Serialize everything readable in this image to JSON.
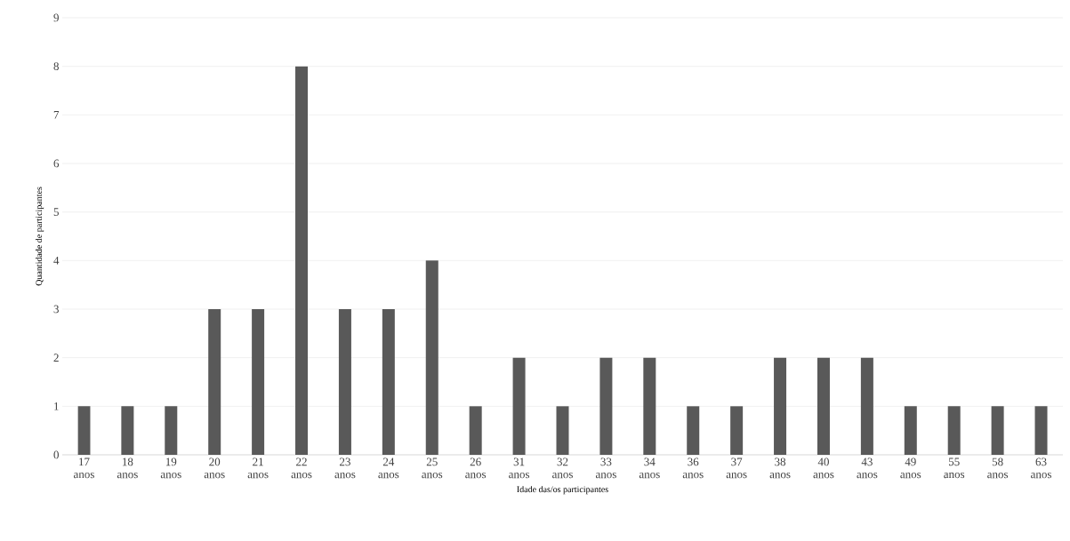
{
  "chart_data": {
    "type": "bar",
    "xlabel": "Idade das/os participantes",
    "ylabel": "Quantidade  de participantes",
    "categories": [
      "17 anos",
      "18 anos",
      "19 anos",
      "20 anos",
      "21 anos",
      "22 anos",
      "23 anos",
      "24 anos",
      "25 anos",
      "26 anos",
      "31 anos",
      "32 anos",
      "33 anos",
      "34 anos",
      "36 anos",
      "37 anos",
      "38 anos",
      "40 anos",
      "43 anos",
      "49 anos",
      "55 anos",
      "58 anos",
      "63 anos"
    ],
    "values": [
      1,
      1,
      1,
      3,
      3,
      8,
      3,
      3,
      4,
      1,
      2,
      1,
      2,
      2,
      1,
      1,
      2,
      2,
      2,
      1,
      1,
      1,
      1
    ],
    "color": "#595959",
    "ylim": [
      0,
      9
    ],
    "yticks": [
      0,
      1,
      2,
      3,
      4,
      5,
      6,
      7,
      8,
      9
    ],
    "grid": "y"
  }
}
